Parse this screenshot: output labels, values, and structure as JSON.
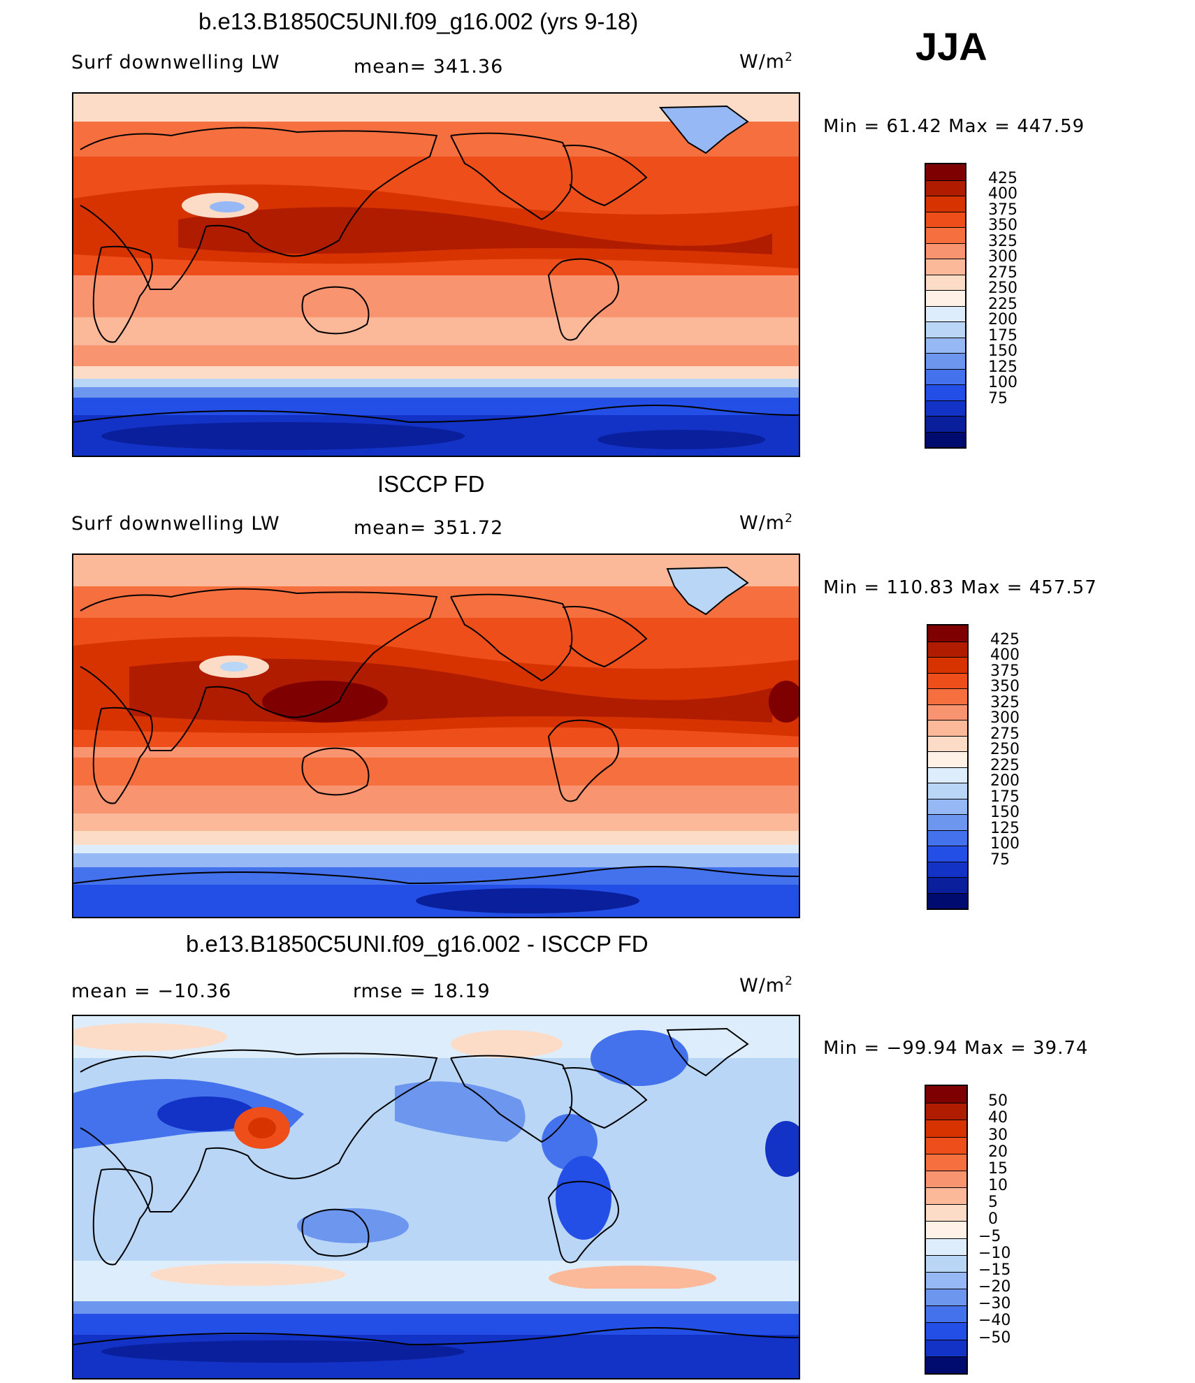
{
  "season": "JJA",
  "panels": [
    {
      "title": "b.e13.B1850C5UNI.f09_g16.002 (yrs 9-18)",
      "left_label": "Surf downwelling LW",
      "mid_label": "mean= 341.36",
      "units": "W/m",
      "units_sup": "2",
      "minmax": "Min =   61.42 Max = 447.59",
      "map_name": "model-field-map",
      "colorbar": {
        "labels": [
          "425",
          "400",
          "375",
          "350",
          "325",
          "300",
          "275",
          "250",
          "225",
          "200",
          "175",
          "150",
          "125",
          "100",
          "75"
        ],
        "colors": [
          "#7f0000",
          "#b01c00",
          "#d63300",
          "#ee4f1a",
          "#f6703f",
          "#f89470",
          "#fbb999",
          "#fddcc7",
          "#fff1e6",
          "#deedfb",
          "#bad6f7",
          "#96b9f5",
          "#6d96ef",
          "#4471ec",
          "#234fe6",
          "#1332c6",
          "#0a1f9b",
          "#000b70"
        ]
      }
    },
    {
      "title": "ISCCP FD",
      "left_label": "Surf downwelling LW",
      "mid_label": "mean= 351.72",
      "units": "W/m",
      "units_sup": "2",
      "minmax": "Min = 110.83 Max = 457.57",
      "map_name": "observation-field-map",
      "colorbar": {
        "labels": [
          "425",
          "400",
          "375",
          "350",
          "325",
          "300",
          "275",
          "250",
          "225",
          "200",
          "175",
          "150",
          "125",
          "100",
          "75"
        ],
        "colors": [
          "#7f0000",
          "#b01c00",
          "#d63300",
          "#ee4f1a",
          "#f6703f",
          "#f89470",
          "#fbb999",
          "#fddcc7",
          "#fff1e6",
          "#deedfb",
          "#bad6f7",
          "#96b9f5",
          "#6d96ef",
          "#4471ec",
          "#234fe6",
          "#1332c6",
          "#0a1f9b",
          "#000b70"
        ]
      }
    },
    {
      "title": "b.e13.B1850C5UNI.f09_g16.002 - ISCCP FD",
      "left_label": "mean = −10.36",
      "mid_label": "rmse =   18.19",
      "units": "W/m",
      "units_sup": "2",
      "minmax": "Min = −99.94 Max =   39.74",
      "map_name": "difference-field-map",
      "colorbar": {
        "labels": [
          "50",
          "40",
          "30",
          "20",
          "15",
          "10",
          "5",
          "0",
          "−5",
          "−10",
          "−15",
          "−20",
          "−30",
          "−40",
          "−50"
        ],
        "colors": [
          "#7f0000",
          "#b01c00",
          "#d63300",
          "#ee4f1a",
          "#f6703f",
          "#f89470",
          "#fbb999",
          "#fddcc7",
          "#fff1e6",
          "#deedfb",
          "#bad6f7",
          "#96b9f5",
          "#6d96ef",
          "#4471ec",
          "#234fe6",
          "#1332c6",
          "#000b70"
        ]
      }
    }
  ]
}
